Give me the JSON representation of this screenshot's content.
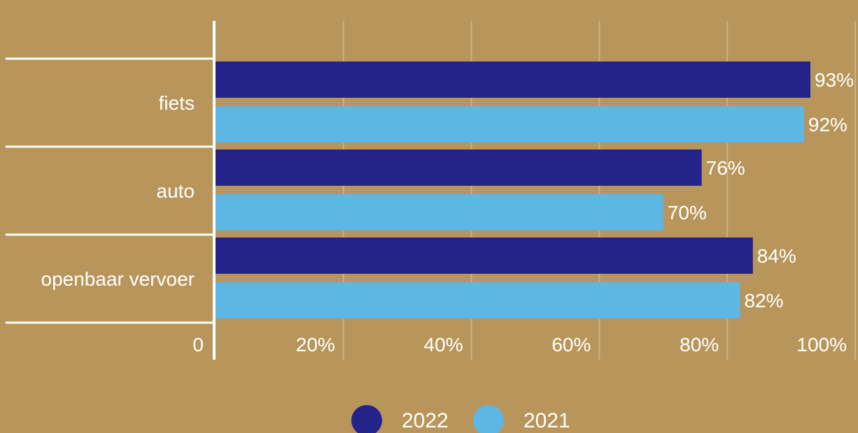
{
  "chart_data": {
    "type": "bar",
    "orientation": "horizontal",
    "categories": [
      "fiets",
      "auto",
      "openbaar vervoer"
    ],
    "series": [
      {
        "name": "2022",
        "values": [
          93,
          76,
          84
        ],
        "color": "#232389"
      },
      {
        "name": "2021",
        "values": [
          92,
          70,
          82
        ],
        "color": "#5db6e4"
      }
    ],
    "value_suffix": "%",
    "xlim": [
      0,
      100
    ],
    "x_ticks": [
      0,
      20,
      40,
      60,
      80,
      100
    ],
    "x_tick_labels": [
      "0",
      "20%",
      "40%",
      "60%",
      "80%",
      "100%"
    ],
    "grid": true,
    "legend": "bottom-center",
    "colors": {
      "background": "#b8965b",
      "grid": "#cdb080",
      "axis": "#ffffff",
      "text": "#ffffff"
    }
  }
}
